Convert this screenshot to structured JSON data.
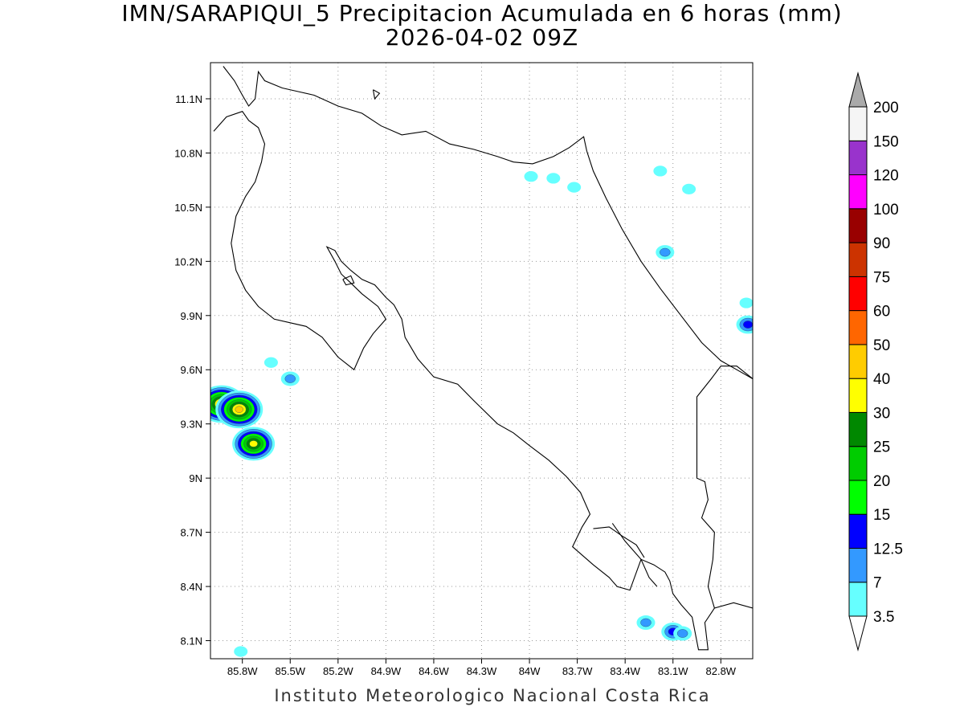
{
  "title": {
    "line1": "IMN/SARAPIQUI_5 Precipitacion Acumulada en 6 horas (mm)",
    "line2": "2026-04-02 09Z"
  },
  "footer": "Instituto Meteorologico Nacional Costa Rica",
  "map": {
    "lon_range": [
      -86.0,
      -82.6
    ],
    "lat_range": [
      8.0,
      11.3
    ],
    "lon_ticks": [
      {
        "value": -85.8,
        "label": "85.8W"
      },
      {
        "value": -85.5,
        "label": "85.5W"
      },
      {
        "value": -85.2,
        "label": "85.2W"
      },
      {
        "value": -84.9,
        "label": "84.9W"
      },
      {
        "value": -84.6,
        "label": "84.6W"
      },
      {
        "value": -84.3,
        "label": "84.3W"
      },
      {
        "value": -84.0,
        "label": "84W"
      },
      {
        "value": -83.7,
        "label": "83.7W"
      },
      {
        "value": -83.4,
        "label": "83.4W"
      },
      {
        "value": -83.1,
        "label": "83.1W"
      },
      {
        "value": -82.8,
        "label": "82.8W"
      }
    ],
    "lat_ticks": [
      {
        "value": 11.1,
        "label": "11.1N"
      },
      {
        "value": 10.8,
        "label": "10.8N"
      },
      {
        "value": 10.5,
        "label": "10.5N"
      },
      {
        "value": 10.2,
        "label": "10.2N"
      },
      {
        "value": 9.9,
        "label": "9.9N"
      },
      {
        "value": 9.6,
        "label": "9.6N"
      },
      {
        "value": 9.3,
        "label": "9.3N"
      },
      {
        "value": 9.0,
        "label": "9N"
      },
      {
        "value": 8.7,
        "label": "8.7N"
      },
      {
        "value": 8.4,
        "label": "8.4N"
      },
      {
        "value": 8.1,
        "label": "8.1N"
      }
    ],
    "grid": true,
    "coastline": [
      [
        -85.92,
        11.28
      ],
      [
        -85.85,
        11.2
      ],
      [
        -85.8,
        11.12
      ],
      [
        -85.76,
        11.06
      ],
      [
        -85.72,
        11.1
      ],
      [
        -85.7,
        11.25
      ],
      [
        -85.66,
        11.2
      ],
      [
        -85.55,
        11.16
      ],
      [
        -85.45,
        11.14
      ],
      [
        -85.35,
        11.12
      ],
      [
        -85.2,
        11.06
      ],
      [
        -85.05,
        11.02
      ],
      [
        -84.93,
        10.95
      ],
      [
        -84.8,
        10.9
      ],
      [
        -84.65,
        10.92
      ],
      [
        -84.5,
        10.85
      ],
      [
        -84.35,
        10.82
      ],
      [
        -84.2,
        10.78
      ],
      [
        -84.1,
        10.75
      ],
      [
        -83.98,
        10.74
      ],
      [
        -83.85,
        10.78
      ],
      [
        -83.75,
        10.83
      ],
      [
        -83.66,
        10.89
      ],
      [
        -83.64,
        10.81
      ]
    ],
    "pacific_coast": [
      [
        -85.98,
        10.92
      ],
      [
        -85.9,
        11.0
      ],
      [
        -85.8,
        11.03
      ],
      [
        -85.76,
        10.98
      ],
      [
        -85.7,
        10.94
      ],
      [
        -85.66,
        10.85
      ],
      [
        -85.68,
        10.75
      ],
      [
        -85.72,
        10.64
      ],
      [
        -85.78,
        10.56
      ],
      [
        -85.84,
        10.45
      ],
      [
        -85.87,
        10.3
      ],
      [
        -85.84,
        10.15
      ],
      [
        -85.78,
        10.04
      ],
      [
        -85.7,
        9.95
      ],
      [
        -85.6,
        9.88
      ],
      [
        -85.5,
        9.86
      ],
      [
        -85.4,
        9.84
      ],
      [
        -85.3,
        9.78
      ],
      [
        -85.2,
        9.67
      ],
      [
        -85.1,
        9.6
      ],
      [
        -85.04,
        9.72
      ],
      [
        -84.98,
        9.8
      ],
      [
        -84.9,
        9.88
      ],
      [
        -84.95,
        9.95
      ],
      [
        -85.05,
        10.02
      ],
      [
        -85.12,
        10.08
      ],
      [
        -85.18,
        10.13
      ],
      [
        -85.22,
        10.2
      ],
      [
        -85.27,
        10.28
      ],
      [
        -85.22,
        10.26
      ],
      [
        -85.18,
        10.2
      ],
      [
        -85.12,
        10.15
      ],
      [
        -85.05,
        10.1
      ],
      [
        -84.97,
        10.07
      ],
      [
        -84.9,
        10.0
      ],
      [
        -84.85,
        9.96
      ],
      [
        -84.8,
        9.88
      ],
      [
        -84.78,
        9.78
      ],
      [
        -84.7,
        9.66
      ],
      [
        -84.6,
        9.56
      ],
      [
        -84.45,
        9.52
      ],
      [
        -84.35,
        9.43
      ],
      [
        -84.2,
        9.3
      ],
      [
        -84.1,
        9.25
      ],
      [
        -84.0,
        9.18
      ],
      [
        -83.88,
        9.1
      ],
      [
        -83.77,
        9.01
      ],
      [
        -83.68,
        8.92
      ],
      [
        -83.62,
        8.8
      ],
      [
        -83.67,
        8.73
      ],
      [
        -83.73,
        8.62
      ],
      [
        -83.6,
        8.52
      ],
      [
        -83.5,
        8.45
      ],
      [
        -83.45,
        8.4
      ],
      [
        -83.37,
        8.38
      ],
      [
        -83.3,
        8.55
      ],
      [
        -83.22,
        8.52
      ],
      [
        -83.15,
        8.48
      ],
      [
        -83.12,
        8.43
      ],
      [
        -83.1,
        8.36
      ],
      [
        -83.05,
        8.3
      ],
      [
        -82.98,
        8.23
      ],
      [
        -82.94,
        8.05
      ],
      [
        -82.88,
        8.05
      ],
      [
        -82.9,
        8.2
      ],
      [
        -82.84,
        8.28
      ],
      [
        -82.72,
        8.31
      ],
      [
        -82.6,
        8.28
      ]
    ],
    "nicoya_gulf_coast": [
      [
        -83.6,
        8.72
      ],
      [
        -83.5,
        8.73
      ],
      [
        -83.42,
        8.68
      ],
      [
        -83.33,
        8.63
      ],
      [
        -83.28,
        8.56
      ]
    ],
    "golfo_dulce": [
      [
        -83.48,
        8.75
      ],
      [
        -83.4,
        8.65
      ],
      [
        -83.3,
        8.55
      ],
      [
        -83.25,
        8.45
      ],
      [
        -83.2,
        8.4
      ]
    ],
    "chira_island": [
      [
        -85.17,
        10.1
      ],
      [
        -85.12,
        10.12
      ],
      [
        -85.1,
        10.08
      ],
      [
        -85.15,
        10.07
      ],
      [
        -85.17,
        10.1
      ]
    ],
    "lake_nicaragua_island": [
      [
        -84.98,
        11.15
      ],
      [
        -84.94,
        11.13
      ],
      [
        -84.97,
        11.1
      ],
      [
        -84.98,
        11.15
      ]
    ],
    "border_panama": [
      [
        -82.6,
        9.55
      ],
      [
        -82.7,
        9.62
      ],
      [
        -82.8,
        9.62
      ],
      [
        -82.86,
        9.55
      ],
      [
        -82.95,
        9.45
      ],
      [
        -82.95,
        9.0
      ],
      [
        -82.9,
        8.98
      ],
      [
        -82.88,
        8.88
      ],
      [
        -82.92,
        8.78
      ],
      [
        -82.84,
        8.7
      ],
      [
        -82.85,
        8.55
      ],
      [
        -82.88,
        8.4
      ],
      [
        -82.84,
        8.28
      ]
    ],
    "caribbean_coast": [
      [
        -83.64,
        10.81
      ],
      [
        -83.6,
        10.7
      ],
      [
        -83.52,
        10.55
      ],
      [
        -83.42,
        10.38
      ],
      [
        -83.3,
        10.2
      ],
      [
        -83.18,
        10.05
      ],
      [
        -83.05,
        9.9
      ],
      [
        -82.92,
        9.75
      ],
      [
        -82.8,
        9.65
      ],
      [
        -82.7,
        9.6
      ],
      [
        -82.6,
        9.55
      ]
    ]
  },
  "precip_blobs": [
    {
      "lon": -85.93,
      "lat": 9.41,
      "peak": 40
    },
    {
      "lon": -85.82,
      "lat": 9.38,
      "peak": 40
    },
    {
      "lon": -85.73,
      "lat": 9.19,
      "peak": 30
    },
    {
      "lon": -85.5,
      "lat": 9.55,
      "peak": 7
    },
    {
      "lon": -85.62,
      "lat": 9.64,
      "peak": 3.5
    },
    {
      "lon": -83.99,
      "lat": 10.67,
      "peak": 3.5
    },
    {
      "lon": -83.85,
      "lat": 10.66,
      "peak": 3.5
    },
    {
      "lon": -83.72,
      "lat": 10.61,
      "peak": 3.5
    },
    {
      "lon": -83.18,
      "lat": 10.7,
      "peak": 3.5
    },
    {
      "lon": -83.0,
      "lat": 10.6,
      "peak": 3.5
    },
    {
      "lon": -83.15,
      "lat": 10.25,
      "peak": 7
    },
    {
      "lon": -82.64,
      "lat": 9.97,
      "peak": 3.5
    },
    {
      "lon": -82.63,
      "lat": 9.85,
      "peak": 12.5
    },
    {
      "lon": -83.1,
      "lat": 8.15,
      "peak": 12.5
    },
    {
      "lon": -83.04,
      "lat": 8.14,
      "peak": 7
    },
    {
      "lon": -83.27,
      "lat": 8.2,
      "peak": 7
    },
    {
      "lon": -85.81,
      "lat": 8.04,
      "peak": 3.5
    }
  ],
  "colorbar": {
    "levels": [
      "3.5",
      "7",
      "12.5",
      "15",
      "20",
      "25",
      "30",
      "40",
      "50",
      "60",
      "75",
      "90",
      "100",
      "120",
      "150",
      "200"
    ],
    "colors": [
      "#66ffff",
      "#3399ff",
      "#0000ff",
      "#00ff00",
      "#00cc00",
      "#008800",
      "#ffff00",
      "#ffcc00",
      "#ff6600",
      "#ff0000",
      "#cc3300",
      "#990000",
      "#ff00ff",
      "#9933cc",
      "#f5f5f5"
    ],
    "over_color": "#aaaaaa",
    "under_color": "#ffffff"
  }
}
